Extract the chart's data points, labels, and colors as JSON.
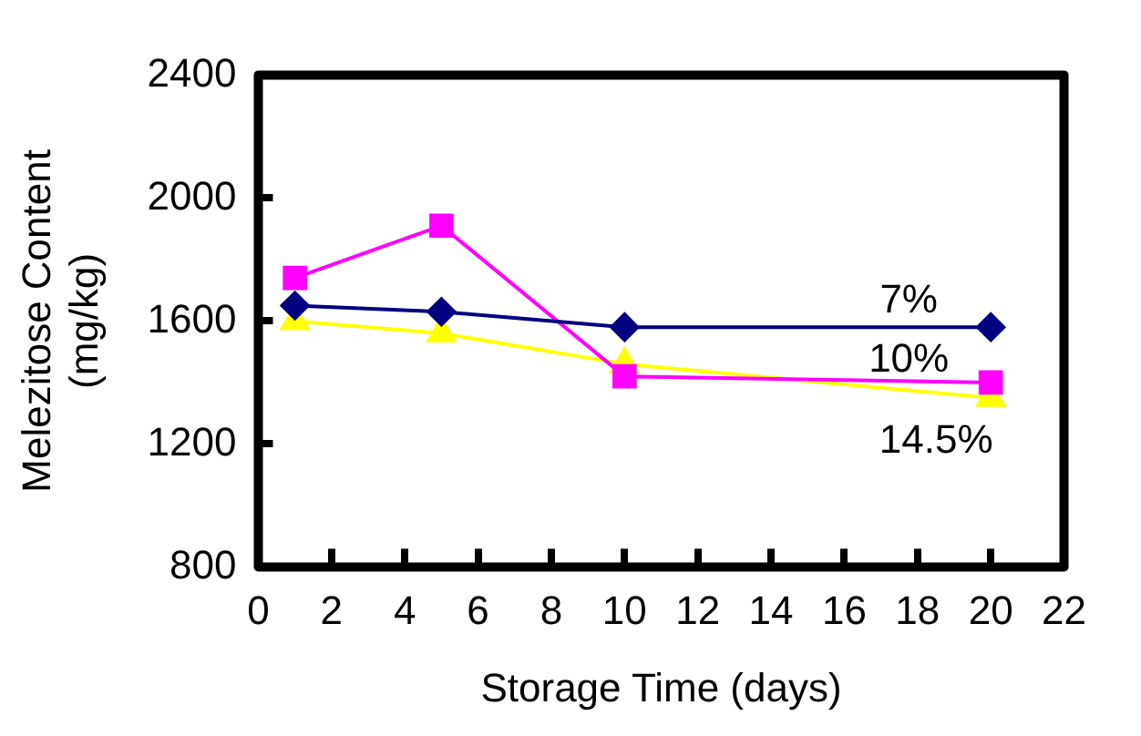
{
  "chart_data": {
    "type": "line",
    "xlabel": "Storage Time (days)",
    "ylabel": "Melezitose Content (mg/kg)",
    "x": [
      1,
      5,
      10,
      20
    ],
    "xlim": [
      0,
      22
    ],
    "xticks": [
      0,
      2,
      4,
      6,
      8,
      10,
      12,
      14,
      16,
      18,
      20,
      22
    ],
    "ylim": [
      800,
      2400
    ],
    "yticks": [
      800,
      1200,
      1600,
      2000,
      2400
    ],
    "grid": false,
    "legend": false,
    "series": [
      {
        "name": "7%",
        "color": "#000080",
        "marker": "diamond",
        "values": [
          1650,
          1630,
          1580,
          1580
        ]
      },
      {
        "name": "10%",
        "color": "#ff00ff",
        "marker": "square",
        "values": [
          1740,
          1910,
          1420,
          1400
        ]
      },
      {
        "name": "14.5%",
        "color": "#ffff00",
        "marker": "triangle",
        "values": [
          1600,
          1560,
          1460,
          1350
        ]
      }
    ]
  }
}
